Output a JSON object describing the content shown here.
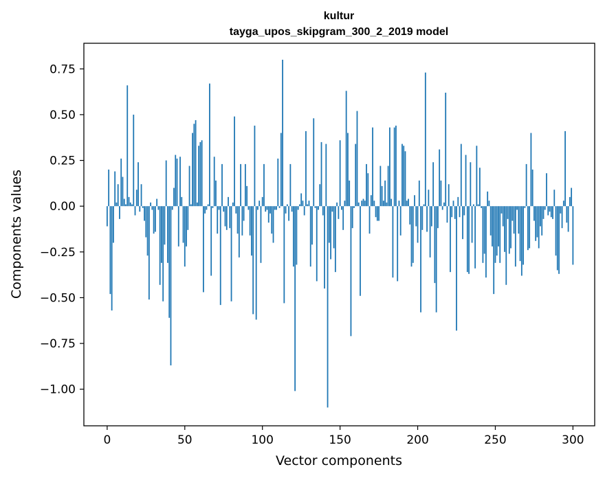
{
  "chart_data": {
    "type": "bar",
    "title": "kultur",
    "subtitle": "tayga_upos_skipgram_300_2_2019 model",
    "xlabel": "Vector components",
    "ylabel": "Components values",
    "xlim": [
      -15,
      314
    ],
    "ylim": [
      -1.2,
      0.89
    ],
    "xticks": [
      0,
      50,
      100,
      150,
      200,
      250,
      300
    ],
    "yticks": [
      -1.0,
      -0.75,
      -0.5,
      -0.25,
      0.0,
      0.25,
      0.5,
      0.75
    ],
    "ytick_labels": [
      "−1.00",
      "−0.75",
      "−0.50",
      "−0.25",
      "0.00",
      "0.25",
      "0.50",
      "0.75"
    ],
    "bar_color": "#1f77b4",
    "grid": false,
    "values": [
      -0.11,
      0.2,
      -0.48,
      -0.57,
      -0.2,
      0.19,
      0.02,
      0.12,
      -0.07,
      0.26,
      0.16,
      0.04,
      0.01,
      0.66,
      0.05,
      0.02,
      0.01,
      0.5,
      -0.05,
      0.09,
      0.24,
      -0.03,
      0.12,
      -0.01,
      -0.08,
      -0.17,
      -0.27,
      -0.51,
      0.02,
      -0.02,
      -0.15,
      -0.14,
      0.04,
      -0.02,
      -0.43,
      -0.31,
      -0.52,
      -0.21,
      0.25,
      -0.31,
      -0.61,
      -0.87,
      -0.02,
      0.1,
      0.28,
      0.26,
      -0.22,
      0.27,
      0.05,
      -0.2,
      -0.33,
      -0.22,
      -0.13,
      0.22,
      0.01,
      0.4,
      0.45,
      0.47,
      0.02,
      0.33,
      0.35,
      0.36,
      -0.47,
      -0.04,
      -0.02,
      0.01,
      0.67,
      -0.38,
      -0.01,
      0.27,
      0.14,
      -0.15,
      -0.02,
      -0.54,
      0.23,
      -0.03,
      -0.11,
      -0.13,
      0.05,
      -0.12,
      -0.52,
      0.02,
      0.49,
      -0.04,
      -0.15,
      -0.28,
      0.23,
      -0.16,
      -0.08,
      0.23,
      0.11,
      -0.02,
      -0.16,
      -0.27,
      -0.59,
      0.44,
      -0.62,
      -0.02,
      0.03,
      -0.31,
      0.05,
      0.23,
      -0.03,
      -0.02,
      -0.09,
      -0.04,
      -0.15,
      -0.2,
      -0.02,
      -0.02,
      0.26,
      -0.01,
      0.4,
      0.8,
      -0.53,
      -0.04,
      0.01,
      -0.08,
      0.23,
      -0.03,
      -0.33,
      -1.01,
      -0.32,
      -0.02,
      0.01,
      0.07,
      0.03,
      -0.05,
      0.41,
      0.01,
      0.03,
      -0.33,
      -0.21,
      0.48,
      -0.01,
      -0.41,
      -0.02,
      0.12,
      0.35,
      -0.05,
      -0.45,
      0.34,
      -1.1,
      -0.2,
      -0.29,
      -0.03,
      -0.23,
      -0.36,
      0.02,
      -0.07,
      0.36,
      -0.02,
      -0.13,
      0.03,
      0.63,
      0.4,
      0.14,
      -0.71,
      -0.12,
      -0.01,
      0.34,
      0.52,
      0.02,
      -0.49,
      0.03,
      0.04,
      0.03,
      0.23,
      0.18,
      -0.15,
      0.06,
      0.43,
      0.03,
      -0.06,
      -0.08,
      -0.08,
      0.22,
      0.11,
      0.03,
      0.14,
      0.02,
      0.22,
      0.43,
      0.04,
      -0.39,
      0.43,
      0.44,
      -0.41,
      0.03,
      -0.16,
      0.34,
      0.33,
      0.3,
      0.03,
      0.04,
      -0.1,
      -0.33,
      -0.31,
      0.06,
      -0.11,
      -0.2,
      0.14,
      -0.58,
      -0.13,
      0.01,
      0.73,
      -0.14,
      0.09,
      -0.28,
      -0.11,
      0.24,
      -0.42,
      -0.58,
      -0.12,
      0.31,
      0.14,
      -0.02,
      0.02,
      0.62,
      -0.09,
      0.12,
      -0.36,
      -0.06,
      0.03,
      -0.07,
      -0.68,
      0.05,
      -0.06,
      0.34,
      -0.18,
      -0.05,
      0.28,
      -0.36,
      -0.37,
      0.24,
      -0.2,
      0.01,
      -0.34,
      0.33,
      0.01,
      0.21,
      -0.01,
      -0.31,
      -0.26,
      -0.39,
      0.08,
      0.03,
      -0.16,
      -0.22,
      -0.48,
      -0.31,
      -0.27,
      -0.22,
      -0.31,
      -0.04,
      -0.11,
      -0.25,
      -0.43,
      -0.07,
      -0.26,
      -0.23,
      -0.08,
      -0.15,
      -0.33,
      -0.02,
      -0.15,
      -0.3,
      -0.38,
      -0.32,
      -0.01,
      0.23,
      -0.24,
      -0.23,
      0.4,
      0.2,
      -0.08,
      -0.19,
      -0.17,
      -0.23,
      -0.11,
      -0.16,
      -0.07,
      -0.02,
      0.18,
      -0.05,
      -0.03,
      -0.06,
      -0.07,
      0.09,
      -0.27,
      -0.35,
      -0.37,
      -0.04,
      -0.12,
      0.03,
      0.41,
      -0.09,
      -0.14,
      0.05,
      0.1,
      -0.32
    ]
  }
}
